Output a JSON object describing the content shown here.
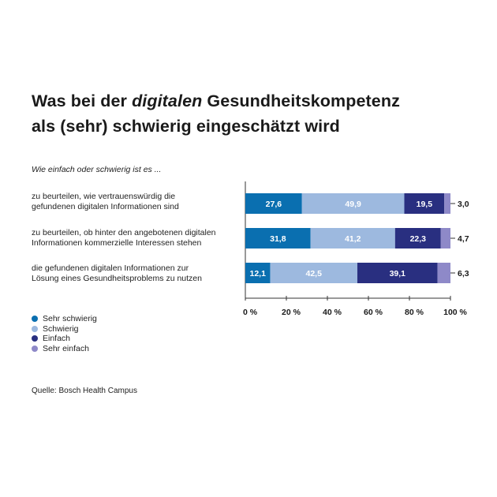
{
  "title_pre": "Was bei der ",
  "title_em": "digitalen",
  "title_post": " Gesundheitskompetenz",
  "title_line2": "als (sehr) schwierig eingeschätzt wird",
  "subtitle": "Wie einfach oder schwierig ist es ...",
  "source": "Quelle: Bosch Health Campus",
  "chart_data": {
    "type": "bar",
    "orientation": "horizontal",
    "stacked": true,
    "title": "Was bei der digitalen Gesundheitskompetenz als (sehr) schwierig eingeschätzt wird",
    "subtitle": "Wie einfach oder schwierig ist es ...",
    "categories": [
      [
        "zu beurteilen, wie vertrauenswürdig die",
        "gefundenen digitalen Informationen sind"
      ],
      [
        "zu beurteilen, ob hinter den angebotenen digitalen",
        "Informationen kommerzielle Interessen stehen"
      ],
      [
        "die gefundenen digitalen Informationen zur",
        "Lösung eines Gesundheitsproblems zu nutzen"
      ]
    ],
    "series": [
      {
        "name": "Sehr schwierig",
        "color": "#0a6fb0",
        "values": [
          27.6,
          31.8,
          12.1
        ],
        "labels": [
          "27,6",
          "31,8",
          "12,1"
        ]
      },
      {
        "name": "Schwierig",
        "color": "#9db9df",
        "values": [
          49.9,
          41.2,
          42.5
        ],
        "labels": [
          "49,9",
          "41,2",
          "42,5"
        ]
      },
      {
        "name": "Einfach",
        "color": "#292f80",
        "values": [
          19.5,
          22.3,
          39.1
        ],
        "labels": [
          "19,5",
          "22,3",
          "39,1"
        ]
      },
      {
        "name": "Sehr einfach",
        "color": "#8e89c8",
        "values": [
          3.0,
          4.7,
          6.3
        ],
        "labels": [
          "3,0",
          "4,7",
          "6,3"
        ]
      }
    ],
    "xlim": [
      0,
      100
    ],
    "xticks": [
      0,
      20,
      40,
      60,
      80,
      100
    ],
    "xtick_labels": [
      "0 %",
      "20 %",
      "40 %",
      "60 %",
      "80 %",
      "100 %"
    ],
    "legend_position": "bottom-left",
    "grid": false
  }
}
